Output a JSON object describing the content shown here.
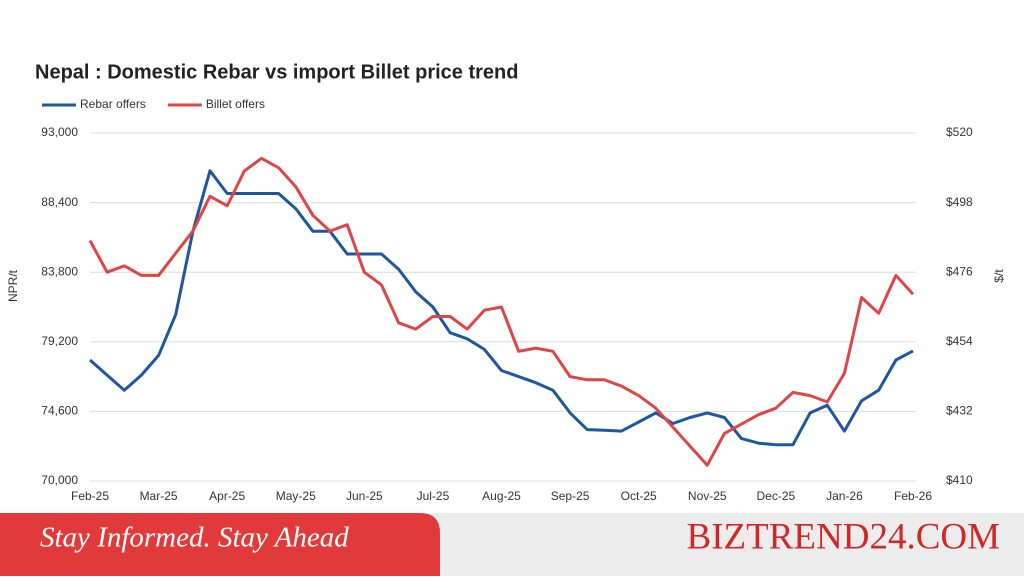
{
  "chart_data": {
    "type": "line",
    "title": "Nepal : Domestic Rebar vs import Billet price trend",
    "ylabel": "NPR/t",
    "y2label": "$/t",
    "categories": [
      "Feb-25",
      null,
      null,
      null,
      "Mar-25",
      null,
      null,
      null,
      "Apr-25",
      null,
      null,
      null,
      "May-25",
      null,
      null,
      null,
      "Jun-25",
      null,
      null,
      null,
      "Jul-25",
      null,
      null,
      null,
      "Aug-25",
      null,
      null,
      null,
      "Sep-25",
      null,
      null,
      null,
      "Oct-25",
      null,
      null,
      null,
      "Nov-25",
      null,
      null,
      null,
      "Dec-25",
      null,
      null,
      null,
      "Jan-26",
      null,
      null,
      null,
      "Feb-26"
    ],
    "series": [
      {
        "name": "Rebar offers",
        "color": "#1f56a0",
        "values": [
          78000,
          77000,
          76000,
          77000,
          78300,
          81000,
          86500,
          90500,
          89000,
          89000,
          89000,
          89000,
          88000,
          86500,
          86500,
          85000,
          85000,
          85000,
          84000,
          82500,
          81500,
          79800,
          79400,
          78700,
          77300,
          76900,
          76500,
          76000,
          74500,
          73400,
          73350,
          73300,
          73900,
          74500,
          73800,
          74200,
          74500,
          74200,
          72800,
          72500,
          72400,
          72400,
          74500,
          75000,
          73300,
          75300,
          76000,
          78000,
          78600
        ]
      },
      {
        "name": "Billet offers",
        "color": "#e04545",
        "axis": "y2",
        "values": [
          486,
          476,
          478,
          475,
          475,
          482,
          489,
          500,
          497,
          508,
          512,
          509,
          503,
          494,
          489,
          491,
          476,
          472,
          460,
          458,
          462,
          462,
          458,
          464,
          465,
          451,
          452,
          451,
          443,
          442,
          442,
          440,
          437,
          433,
          427,
          421,
          415,
          425,
          428,
          431,
          433,
          438,
          437,
          435,
          444,
          468,
          463,
          475,
          469
        ]
      }
    ],
    "ylim": [
      70000,
      93000
    ],
    "yticks": [
      {
        "value": 70000,
        "label": "70,000"
      },
      {
        "value": 74600,
        "label": "74,600"
      },
      {
        "value": 79200,
        "label": "79,200"
      },
      {
        "value": 83800,
        "label": "83,800"
      },
      {
        "value": 88400,
        "label": "88,400"
      },
      {
        "value": 93000,
        "label": "93,000"
      }
    ],
    "y2lim": [
      410,
      520
    ],
    "y2ticks": [
      {
        "value": 410,
        "label": "$410"
      },
      {
        "value": 432,
        "label": "$432"
      },
      {
        "value": 454,
        "label": "$454"
      },
      {
        "value": 476,
        "label": "$476"
      },
      {
        "value": 498,
        "label": "$498"
      },
      {
        "value": 520,
        "label": "$520"
      }
    ],
    "grid": true,
    "legend": "top-left"
  },
  "banner": {
    "tagline": "Stay Informed. Stay Ahead",
    "brand": "BIZTREND24.COM"
  }
}
